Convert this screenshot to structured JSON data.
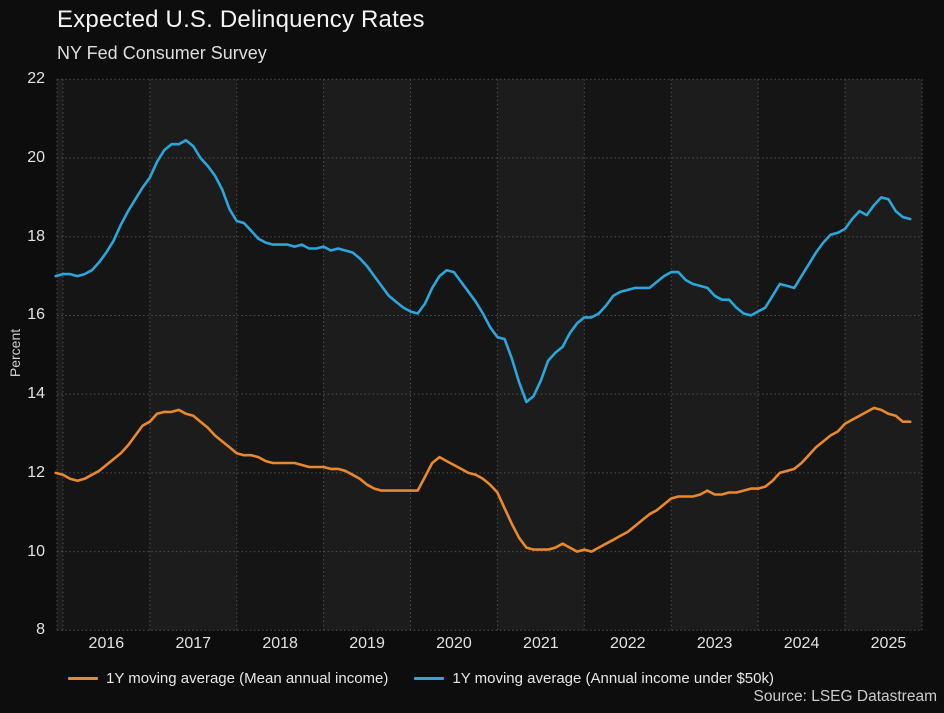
{
  "page": {
    "title": "Expected U.S. Delinquency Rates",
    "subtitle": "NY Fed Consumer Survey",
    "source": "Source: LSEG Datastream"
  },
  "chart_data": {
    "type": "line",
    "title": "Expected U.S. Delinquency Rates",
    "subtitle": "NY Fed Consumer Survey",
    "ylabel": "Percent",
    "xlabel": "",
    "x_unit": "monthly",
    "x_start": "2015-12",
    "x_end": "2025-10",
    "x_domain_years": [
      2015.93,
      2025.89
    ],
    "y_domain": [
      8,
      22
    ],
    "y_ticks": [
      22,
      20,
      18,
      16,
      14,
      12,
      10,
      8
    ],
    "x_tick_years": [
      2016,
      2017,
      2018,
      2019,
      2020,
      2021,
      2022,
      2023,
      2024,
      2025
    ],
    "grid": "dotted",
    "legend_position": "bottom-left",
    "background_bands": {
      "even_year_color": "#151515",
      "odd_year_color": "#1c1c1c"
    },
    "gridline_color": "#4f4f4f",
    "series": [
      {
        "name": "1Y moving average (Mean annual income)",
        "color": "#E8882F",
        "values": [
          12.0,
          11.95,
          11.85,
          11.8,
          11.85,
          11.95,
          12.05,
          12.2,
          12.35,
          12.5,
          12.7,
          12.95,
          13.2,
          13.3,
          13.5,
          13.55,
          13.55,
          13.6,
          13.5,
          13.45,
          13.3,
          13.15,
          12.95,
          12.8,
          12.65,
          12.5,
          12.45,
          12.45,
          12.4,
          12.3,
          12.25,
          12.25,
          12.25,
          12.25,
          12.2,
          12.15,
          12.15,
          12.15,
          12.1,
          12.1,
          12.05,
          11.95,
          11.85,
          11.7,
          11.6,
          11.55,
          11.55,
          11.55,
          11.55,
          11.55,
          11.55,
          11.9,
          12.25,
          12.4,
          12.3,
          12.2,
          12.1,
          12.0,
          11.95,
          11.85,
          11.7,
          11.5,
          11.1,
          10.7,
          10.35,
          10.1,
          10.05,
          10.05,
          10.05,
          10.1,
          10.2,
          10.1,
          10.0,
          10.05,
          10.0,
          10.1,
          10.2,
          10.3,
          10.4,
          10.5,
          10.65,
          10.8,
          10.95,
          11.05,
          11.2,
          11.35,
          11.4,
          11.4,
          11.4,
          11.45,
          11.55,
          11.45,
          11.45,
          11.5,
          11.5,
          11.55,
          11.6,
          11.6,
          11.65,
          11.8,
          12.0,
          12.05,
          12.1,
          12.25,
          12.45,
          12.65,
          12.8,
          12.95,
          13.05,
          13.25,
          13.35,
          13.45,
          13.55,
          13.65,
          13.6,
          13.5,
          13.45,
          13.3,
          13.3
        ]
      },
      {
        "name": "1Y moving average (Annual income under $50k)",
        "color": "#2CA6DA",
        "values": [
          17.0,
          17.05,
          17.05,
          17.0,
          17.05,
          17.15,
          17.35,
          17.6,
          17.9,
          18.3,
          18.65,
          18.95,
          19.25,
          19.5,
          19.9,
          20.2,
          20.35,
          20.35,
          20.45,
          20.3,
          20.0,
          19.8,
          19.55,
          19.2,
          18.7,
          18.4,
          18.35,
          18.15,
          17.95,
          17.85,
          17.8,
          17.8,
          17.8,
          17.75,
          17.8,
          17.7,
          17.7,
          17.75,
          17.65,
          17.7,
          17.65,
          17.6,
          17.45,
          17.25,
          17.0,
          16.75,
          16.5,
          16.35,
          16.2,
          16.1,
          16.05,
          16.3,
          16.7,
          17.0,
          17.15,
          17.1,
          16.85,
          16.6,
          16.35,
          16.05,
          15.7,
          15.45,
          15.4,
          14.9,
          14.3,
          13.8,
          13.95,
          14.35,
          14.85,
          15.05,
          15.2,
          15.55,
          15.8,
          15.95,
          15.95,
          16.05,
          16.25,
          16.5,
          16.6,
          16.65,
          16.7,
          16.7,
          16.7,
          16.85,
          17.0,
          17.1,
          17.1,
          16.9,
          16.8,
          16.75,
          16.7,
          16.5,
          16.4,
          16.4,
          16.2,
          16.05,
          16.0,
          16.1,
          16.2,
          16.5,
          16.8,
          16.75,
          16.7,
          17.0,
          17.3,
          17.6,
          17.85,
          18.05,
          18.1,
          18.2,
          18.45,
          18.65,
          18.55,
          18.8,
          19.0,
          18.95,
          18.65,
          18.5,
          18.45
        ]
      }
    ],
    "source": "Source: LSEG Datastream"
  }
}
